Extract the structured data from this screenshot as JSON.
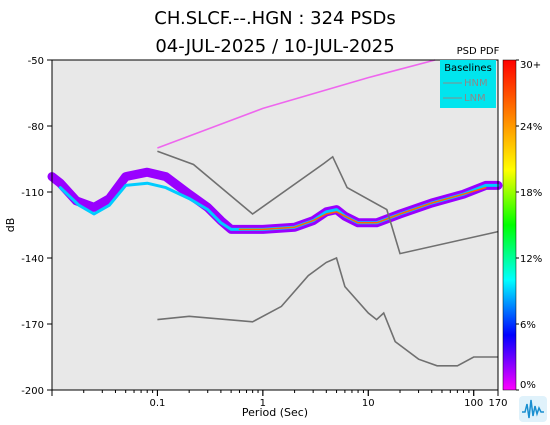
{
  "chart_data": {
    "type": "heatmap",
    "title_line1": "CH.SLCF.--.HGN : 324 PSDs",
    "title_line2": "04-JUL-2025 / 10-JUL-2025",
    "xlabel": "Period (Sec)",
    "ylabel": "dB",
    "x_scale": "log",
    "xlim": [
      0.01,
      170
    ],
    "ylim": [
      -200,
      -50
    ],
    "x_ticks": [
      {
        "value": 0.1,
        "label": "0.1"
      },
      {
        "value": 1,
        "label": "1"
      },
      {
        "value": 10,
        "label": "10"
      },
      {
        "value": 100,
        "label": "100"
      },
      {
        "value": 170,
        "label": "170"
      }
    ],
    "y_ticks": [
      {
        "value": -50,
        "label": "-50"
      },
      {
        "value": -80,
        "label": "-80"
      },
      {
        "value": -110,
        "label": "-110"
      },
      {
        "value": -140,
        "label": "-140"
      },
      {
        "value": -170,
        "label": "-170"
      },
      {
        "value": -200,
        "label": "-200"
      }
    ],
    "colorbar": {
      "title": "PSD PDF",
      "ticks": [
        {
          "value": 0,
          "label": "0%"
        },
        {
          "value": 6,
          "label": "6%"
        },
        {
          "value": 12,
          "label": "12%"
        },
        {
          "value": 18,
          "label": "18%"
        },
        {
          "value": 24,
          "label": "24%"
        },
        {
          "value": 30,
          "label": "30+"
        }
      ],
      "range": [
        0,
        30
      ],
      "colors": [
        "#ff00ff",
        "#0000ff",
        "#00ffff",
        "#00ff00",
        "#ffff00",
        "#ff8000",
        "#ff0000"
      ]
    },
    "legend": {
      "title": "Baselines",
      "entries": [
        "HNM",
        "LNM"
      ],
      "placement": "top-right",
      "background": "#00e5ee"
    },
    "series": [
      {
        "name": "HNM",
        "color": "#707070",
        "x": [
          0.1,
          0.22,
          0.8,
          3.8,
          4.6,
          6.3,
          15,
          20,
          170
        ],
        "y": [
          -91.5,
          -97.5,
          -120,
          -97,
          -94,
          -108,
          -118,
          -138,
          -128
        ]
      },
      {
        "name": "LNM",
        "color": "#707070",
        "x": [
          0.1,
          0.2,
          0.8,
          1.5,
          2.7,
          4.0,
          5.0,
          6.0,
          10,
          12,
          14,
          18,
          30,
          45,
          70,
          100,
          170
        ],
        "y": [
          -168,
          -166.5,
          -169,
          -162,
          -148,
          -142,
          -140,
          -153,
          -165,
          -168,
          -165,
          -178,
          -186,
          -189,
          -189,
          -185,
          -185
        ]
      },
      {
        "name": "upper-bound",
        "color": "#ee66ee",
        "x": [
          0.1,
          1,
          10,
          43
        ],
        "y": [
          -90,
          -72,
          -58,
          -50
        ]
      }
    ],
    "density_bands": [
      {
        "level": 2,
        "width": 9,
        "x": [
          0.01,
          0.012,
          0.017,
          0.025,
          0.035,
          0.05,
          0.08,
          0.12,
          0.2,
          0.3,
          0.4,
          0.5,
          0.7,
          1,
          2,
          3,
          4,
          5,
          6,
          8,
          12,
          20,
          40,
          80,
          130,
          170
        ],
        "y": [
          -103,
          -106,
          -114,
          -117,
          -113,
          -103,
          -101,
          -103,
          -111,
          -117,
          -123,
          -127,
          -127,
          -127,
          -126,
          -123,
          -119,
          -118,
          -121,
          -124,
          -124,
          -120,
          -115,
          -111,
          -107,
          -107
        ]
      },
      {
        "level": 9,
        "width": 3,
        "x": [
          0.012,
          0.018,
          0.025,
          0.035,
          0.05,
          0.08,
          0.12,
          0.2,
          0.3,
          0.4,
          0.5,
          0.7,
          1,
          2,
          3,
          4,
          5,
          6,
          8,
          12,
          20,
          40,
          80,
          130,
          170
        ],
        "y": [
          -108,
          -116,
          -120,
          -116,
          -107,
          -106,
          -108,
          -113,
          -118,
          -124,
          -127,
          -127,
          -127,
          -126,
          -123,
          -119,
          -118,
          -121,
          -124,
          -124,
          -120,
          -115,
          -111,
          -107,
          -107
        ]
      },
      {
        "level": 26,
        "width": 1.5,
        "x": [
          0.6,
          1,
          2,
          3,
          4,
          5,
          6,
          8,
          12,
          20,
          40,
          80,
          130
        ],
        "y": [
          -127,
          -127,
          -126,
          -123,
          -120,
          -119,
          -121,
          -124,
          -124,
          -120,
          -115,
          -111,
          -108
        ]
      }
    ]
  }
}
